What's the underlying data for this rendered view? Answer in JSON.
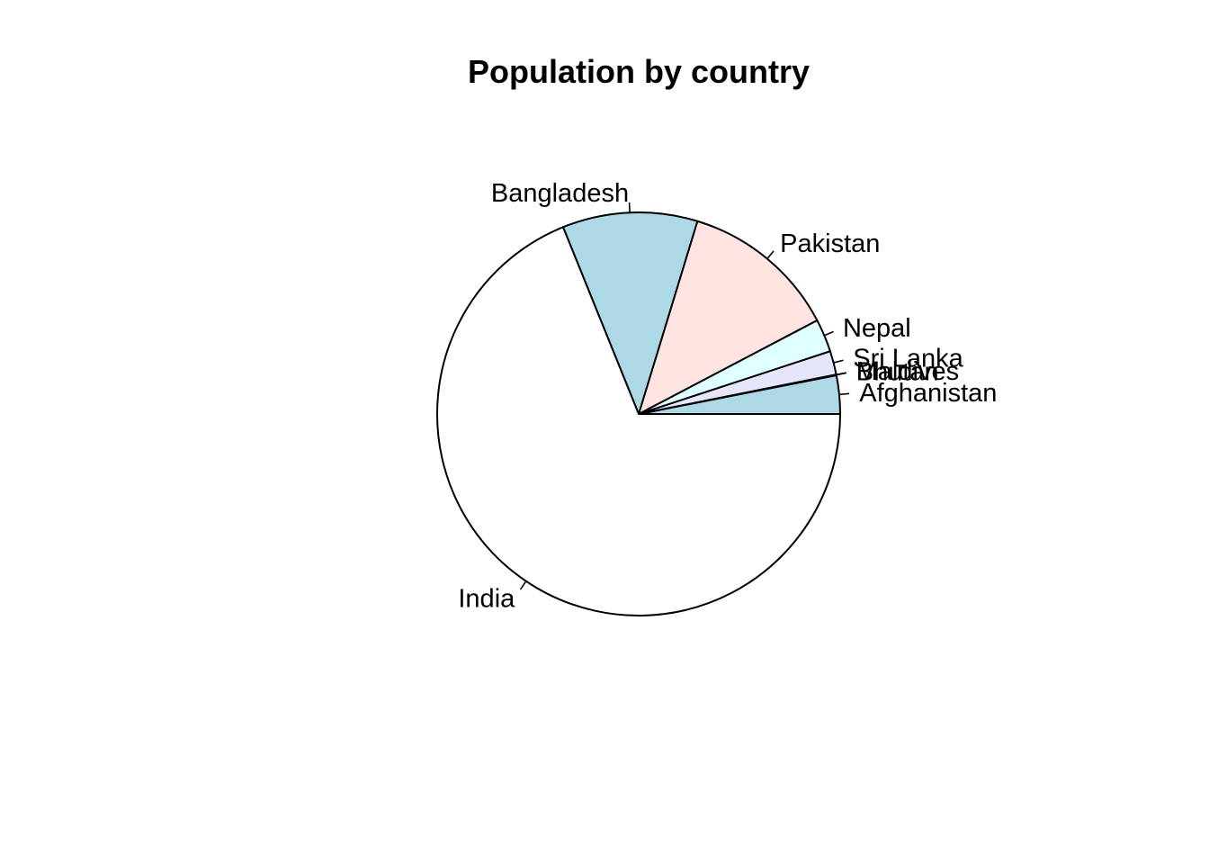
{
  "chart_data": {
    "type": "pie",
    "title": "Population by country",
    "direction": "counterclockwise",
    "start_angle_deg": 0,
    "slices": [
      {
        "label": "Afghanistan",
        "value": 3.08,
        "color": "#ADD8E6"
      },
      {
        "label": "Bhutan",
        "value": 0.04,
        "color": "#FFFFFF"
      },
      {
        "label": "Maldives",
        "value": 0.02,
        "color": "#FFFFFF"
      },
      {
        "label": "Sri Lanka",
        "value": 1.9,
        "color": "#E6E6FA"
      },
      {
        "label": "Nepal",
        "value": 2.65,
        "color": "#E0FFFF"
      },
      {
        "label": "Pakistan",
        "value": 12.6,
        "color": "#FFE4E1"
      },
      {
        "label": "Bangladesh",
        "value": 10.83,
        "color": "#ADD8E6"
      },
      {
        "label": "India",
        "value": 68.88,
        "color": "#FFFFFF"
      }
    ]
  }
}
